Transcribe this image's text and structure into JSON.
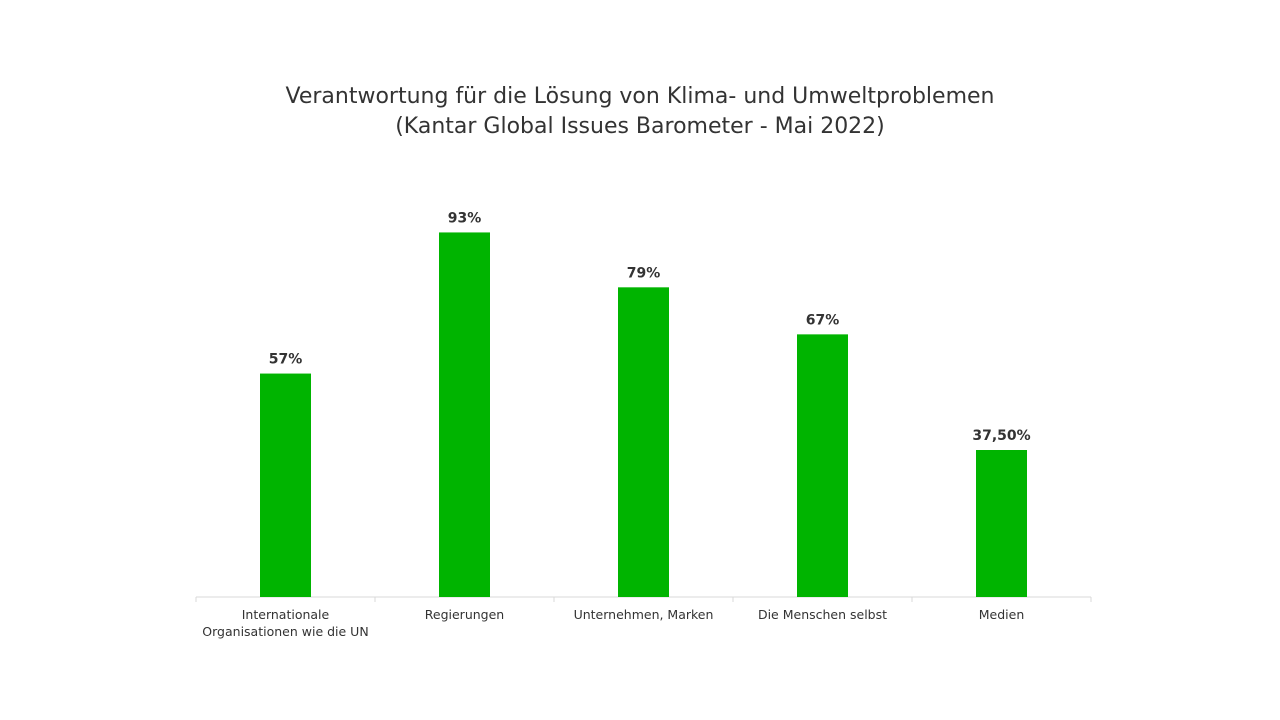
{
  "chart_data": {
    "type": "bar",
    "title": "Verantwortung für die Lösung von Klima- und Umweltproblemen",
    "subtitle": "(Kantar Global Issues Barometer - Mai 2022)",
    "categories": [
      [
        "Internationale",
        "Organisationen wie die UN"
      ],
      [
        "Regierungen"
      ],
      [
        "Unternehmen, Marken"
      ],
      [
        "Die Menschen selbst"
      ],
      [
        "Medien"
      ]
    ],
    "values": [
      57,
      93,
      79,
      67,
      37.5
    ],
    "value_labels": [
      "57%",
      "93%",
      "79%",
      "67%",
      "37,50%"
    ],
    "xlabel": "",
    "ylabel": "",
    "ylim": [
      0,
      100
    ],
    "grid": false,
    "legend": "none",
    "bar_color": "#00b400",
    "axis_color": "#d9d9d9"
  }
}
